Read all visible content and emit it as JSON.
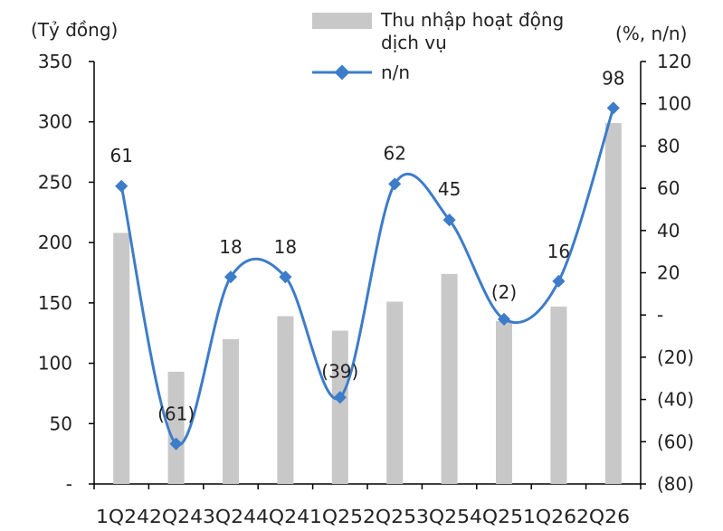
{
  "chart_data": {
    "type": "bar",
    "categories": [
      "1Q24",
      "2Q24",
      "3Q24",
      "4Q24",
      "1Q25",
      "2Q25",
      "3Q25",
      "4Q25",
      "1Q26",
      "2Q26"
    ],
    "category_labels_text": "1Q242Q243Q244Q241Q252Q253Q254Q251Q262Q26",
    "series": [
      {
        "name": "Thu nhập hoạt động dịch vụ",
        "type": "bar",
        "axis": "left",
        "color": "#c8c8c8",
        "values": [
          208,
          93,
          120,
          139,
          127,
          151,
          174,
          135,
          147,
          299
        ]
      },
      {
        "name": "n/n",
        "type": "line",
        "axis": "right",
        "color": "#3d7cc9",
        "values": [
          61,
          -61,
          18,
          18,
          -39,
          62,
          45,
          -2,
          16,
          98
        ],
        "data_labels": [
          "61",
          "(61)",
          "18",
          "18",
          "(39)",
          "62",
          "45",
          "(2)",
          "16",
          "98"
        ]
      }
    ],
    "y_left": {
      "label": "(Tỷ đồng)",
      "ylim": [
        0,
        350
      ],
      "ticks": [
        0,
        50,
        100,
        150,
        200,
        250,
        300,
        350
      ],
      "tick_labels": [
        "-",
        "50",
        "100",
        "150",
        "200",
        "250",
        "300",
        "350"
      ]
    },
    "y_right": {
      "label": "(%, n/n)",
      "ylim": [
        -80,
        120
      ],
      "ticks": [
        -80,
        -60,
        -40,
        -20,
        0,
        20,
        40,
        60,
        80,
        100,
        120
      ],
      "tick_labels": [
        "(80)",
        "(60)",
        "(40)",
        "(20)",
        "-",
        "20",
        "40",
        "60",
        "80",
        "100",
        "120"
      ]
    },
    "legend": {
      "placement": "top-center",
      "bar_label_line1": "Thu nhập hoạt động",
      "bar_label_line2": "dịch vụ",
      "line_label": "n/n"
    },
    "grid": false
  }
}
